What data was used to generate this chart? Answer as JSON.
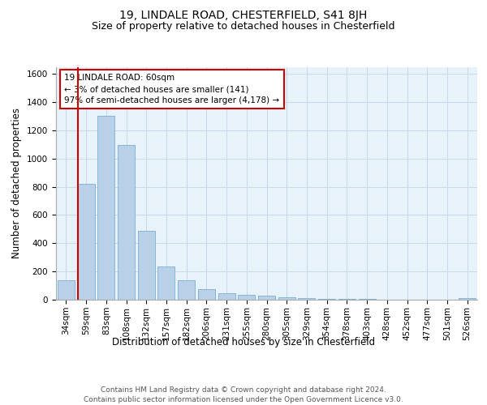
{
  "title": "19, LINDALE ROAD, CHESTERFIELD, S41 8JH",
  "subtitle": "Size of property relative to detached houses in Chesterfield",
  "xlabel": "Distribution of detached houses by size in Chesterfield",
  "ylabel": "Number of detached properties",
  "categories": [
    "34sqm",
    "59sqm",
    "83sqm",
    "108sqm",
    "132sqm",
    "157sqm",
    "182sqm",
    "206sqm",
    "231sqm",
    "255sqm",
    "280sqm",
    "305sqm",
    "329sqm",
    "354sqm",
    "378sqm",
    "403sqm",
    "428sqm",
    "452sqm",
    "477sqm",
    "501sqm",
    "526sqm"
  ],
  "values": [
    140,
    820,
    1300,
    1095,
    490,
    235,
    135,
    75,
    48,
    33,
    28,
    15,
    10,
    8,
    5,
    3,
    2,
    1,
    1,
    1,
    10
  ],
  "bar_color": "#b8d0e8",
  "bar_edge_color": "#7aaed4",
  "vline_color": "#cc0000",
  "annotation_text": "19 LINDALE ROAD: 60sqm\n← 3% of detached houses are smaller (141)\n97% of semi-detached houses are larger (4,178) →",
  "annotation_box_color": "#ffffff",
  "annotation_box_edge_color": "#cc0000",
  "ylim": [
    0,
    1650
  ],
  "yticks": [
    0,
    200,
    400,
    600,
    800,
    1000,
    1200,
    1400,
    1600
  ],
  "grid_color": "#c8d8e8",
  "background_color": "#e8f2fa",
  "footer": "Contains HM Land Registry data © Crown copyright and database right 2024.\nContains public sector information licensed under the Open Government Licence v3.0.",
  "title_fontsize": 10,
  "subtitle_fontsize": 9,
  "label_fontsize": 8.5,
  "tick_fontsize": 7.5,
  "footer_fontsize": 6.5
}
